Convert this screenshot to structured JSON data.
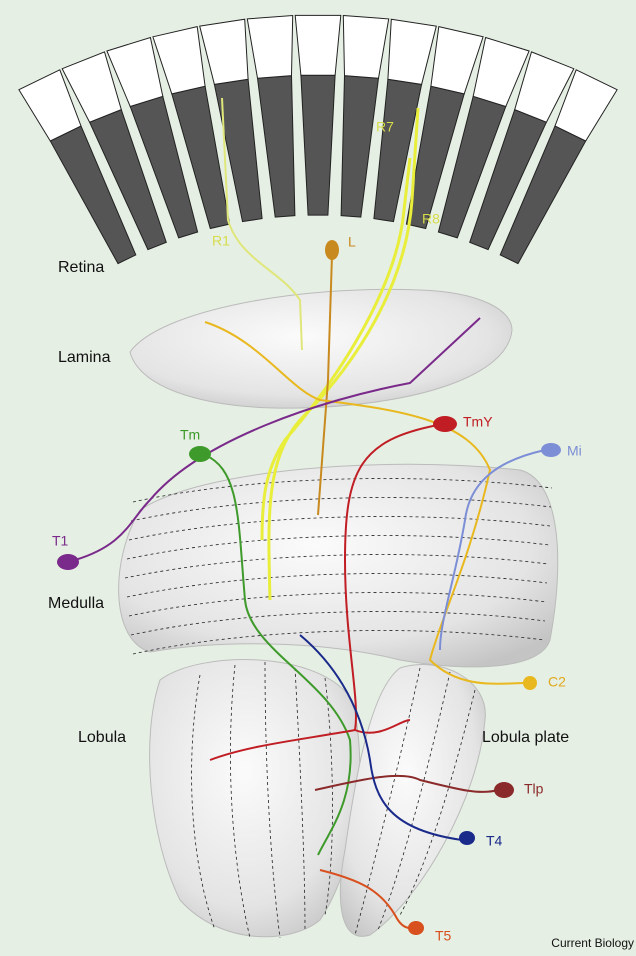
{
  "regions": [
    {
      "label": "Retina"
    },
    {
      "label": "Lamina"
    },
    {
      "label": "Medulla"
    },
    {
      "label": "Lobula"
    },
    {
      "label": "Lobula plate"
    }
  ],
  "neurons": [
    {
      "label": "R1"
    },
    {
      "label": "R7"
    },
    {
      "label": "R8"
    },
    {
      "label": "L"
    },
    {
      "label": "Tm"
    },
    {
      "label": "TmY"
    },
    {
      "label": "Mi"
    },
    {
      "label": "T1"
    },
    {
      "label": "C2"
    },
    {
      "label": "Tlp"
    },
    {
      "label": "T4"
    },
    {
      "label": "T5"
    }
  ],
  "credit": "Current Biology"
}
